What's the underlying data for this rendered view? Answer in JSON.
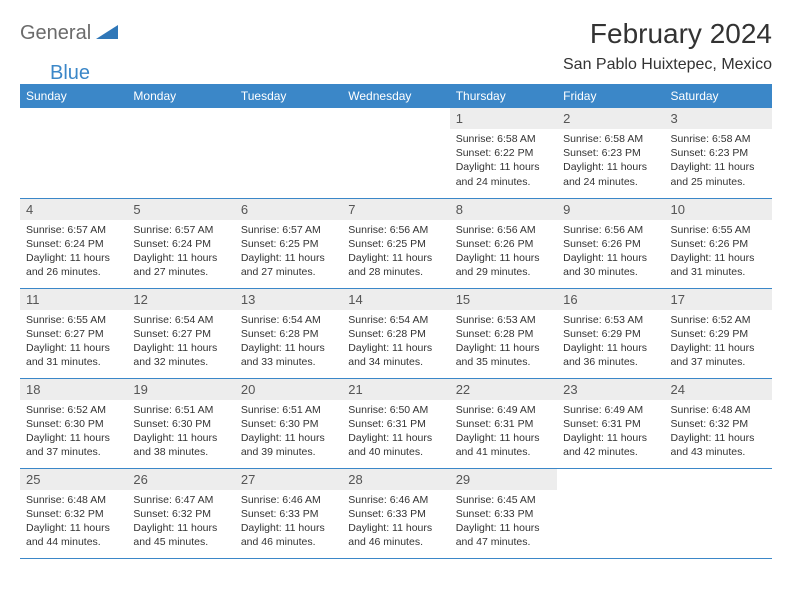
{
  "logo": {
    "word1": "General",
    "word2": "Blue",
    "shape_color": "#2f77b8"
  },
  "title": "February 2024",
  "location": "San Pablo Huixtepec, Mexico",
  "colors": {
    "header_bg": "#3b87c8",
    "header_fg": "#ffffff",
    "daynum_bg": "#ededed",
    "rule": "#3b87c8"
  },
  "weekdays": [
    "Sunday",
    "Monday",
    "Tuesday",
    "Wednesday",
    "Thursday",
    "Friday",
    "Saturday"
  ],
  "weeks": [
    [
      {
        "n": "",
        "sunrise": "",
        "sunset": "",
        "daylight": ""
      },
      {
        "n": "",
        "sunrise": "",
        "sunset": "",
        "daylight": ""
      },
      {
        "n": "",
        "sunrise": "",
        "sunset": "",
        "daylight": ""
      },
      {
        "n": "",
        "sunrise": "",
        "sunset": "",
        "daylight": ""
      },
      {
        "n": "1",
        "sunrise": "6:58 AM",
        "sunset": "6:22 PM",
        "daylight": "11 hours and 24 minutes."
      },
      {
        "n": "2",
        "sunrise": "6:58 AM",
        "sunset": "6:23 PM",
        "daylight": "11 hours and 24 minutes."
      },
      {
        "n": "3",
        "sunrise": "6:58 AM",
        "sunset": "6:23 PM",
        "daylight": "11 hours and 25 minutes."
      }
    ],
    [
      {
        "n": "4",
        "sunrise": "6:57 AM",
        "sunset": "6:24 PM",
        "daylight": "11 hours and 26 minutes."
      },
      {
        "n": "5",
        "sunrise": "6:57 AM",
        "sunset": "6:24 PM",
        "daylight": "11 hours and 27 minutes."
      },
      {
        "n": "6",
        "sunrise": "6:57 AM",
        "sunset": "6:25 PM",
        "daylight": "11 hours and 27 minutes."
      },
      {
        "n": "7",
        "sunrise": "6:56 AM",
        "sunset": "6:25 PM",
        "daylight": "11 hours and 28 minutes."
      },
      {
        "n": "8",
        "sunrise": "6:56 AM",
        "sunset": "6:26 PM",
        "daylight": "11 hours and 29 minutes."
      },
      {
        "n": "9",
        "sunrise": "6:56 AM",
        "sunset": "6:26 PM",
        "daylight": "11 hours and 30 minutes."
      },
      {
        "n": "10",
        "sunrise": "6:55 AM",
        "sunset": "6:26 PM",
        "daylight": "11 hours and 31 minutes."
      }
    ],
    [
      {
        "n": "11",
        "sunrise": "6:55 AM",
        "sunset": "6:27 PM",
        "daylight": "11 hours and 31 minutes."
      },
      {
        "n": "12",
        "sunrise": "6:54 AM",
        "sunset": "6:27 PM",
        "daylight": "11 hours and 32 minutes."
      },
      {
        "n": "13",
        "sunrise": "6:54 AM",
        "sunset": "6:28 PM",
        "daylight": "11 hours and 33 minutes."
      },
      {
        "n": "14",
        "sunrise": "6:54 AM",
        "sunset": "6:28 PM",
        "daylight": "11 hours and 34 minutes."
      },
      {
        "n": "15",
        "sunrise": "6:53 AM",
        "sunset": "6:28 PM",
        "daylight": "11 hours and 35 minutes."
      },
      {
        "n": "16",
        "sunrise": "6:53 AM",
        "sunset": "6:29 PM",
        "daylight": "11 hours and 36 minutes."
      },
      {
        "n": "17",
        "sunrise": "6:52 AM",
        "sunset": "6:29 PM",
        "daylight": "11 hours and 37 minutes."
      }
    ],
    [
      {
        "n": "18",
        "sunrise": "6:52 AM",
        "sunset": "6:30 PM",
        "daylight": "11 hours and 37 minutes."
      },
      {
        "n": "19",
        "sunrise": "6:51 AM",
        "sunset": "6:30 PM",
        "daylight": "11 hours and 38 minutes."
      },
      {
        "n": "20",
        "sunrise": "6:51 AM",
        "sunset": "6:30 PM",
        "daylight": "11 hours and 39 minutes."
      },
      {
        "n": "21",
        "sunrise": "6:50 AM",
        "sunset": "6:31 PM",
        "daylight": "11 hours and 40 minutes."
      },
      {
        "n": "22",
        "sunrise": "6:49 AM",
        "sunset": "6:31 PM",
        "daylight": "11 hours and 41 minutes."
      },
      {
        "n": "23",
        "sunrise": "6:49 AM",
        "sunset": "6:31 PM",
        "daylight": "11 hours and 42 minutes."
      },
      {
        "n": "24",
        "sunrise": "6:48 AM",
        "sunset": "6:32 PM",
        "daylight": "11 hours and 43 minutes."
      }
    ],
    [
      {
        "n": "25",
        "sunrise": "6:48 AM",
        "sunset": "6:32 PM",
        "daylight": "11 hours and 44 minutes."
      },
      {
        "n": "26",
        "sunrise": "6:47 AM",
        "sunset": "6:32 PM",
        "daylight": "11 hours and 45 minutes."
      },
      {
        "n": "27",
        "sunrise": "6:46 AM",
        "sunset": "6:33 PM",
        "daylight": "11 hours and 46 minutes."
      },
      {
        "n": "28",
        "sunrise": "6:46 AM",
        "sunset": "6:33 PM",
        "daylight": "11 hours and 46 minutes."
      },
      {
        "n": "29",
        "sunrise": "6:45 AM",
        "sunset": "6:33 PM",
        "daylight": "11 hours and 47 minutes."
      },
      {
        "n": "",
        "sunrise": "",
        "sunset": "",
        "daylight": ""
      },
      {
        "n": "",
        "sunrise": "",
        "sunset": "",
        "daylight": ""
      }
    ]
  ],
  "labels": {
    "sunrise": "Sunrise: ",
    "sunset": "Sunset: ",
    "daylight": "Daylight: "
  }
}
